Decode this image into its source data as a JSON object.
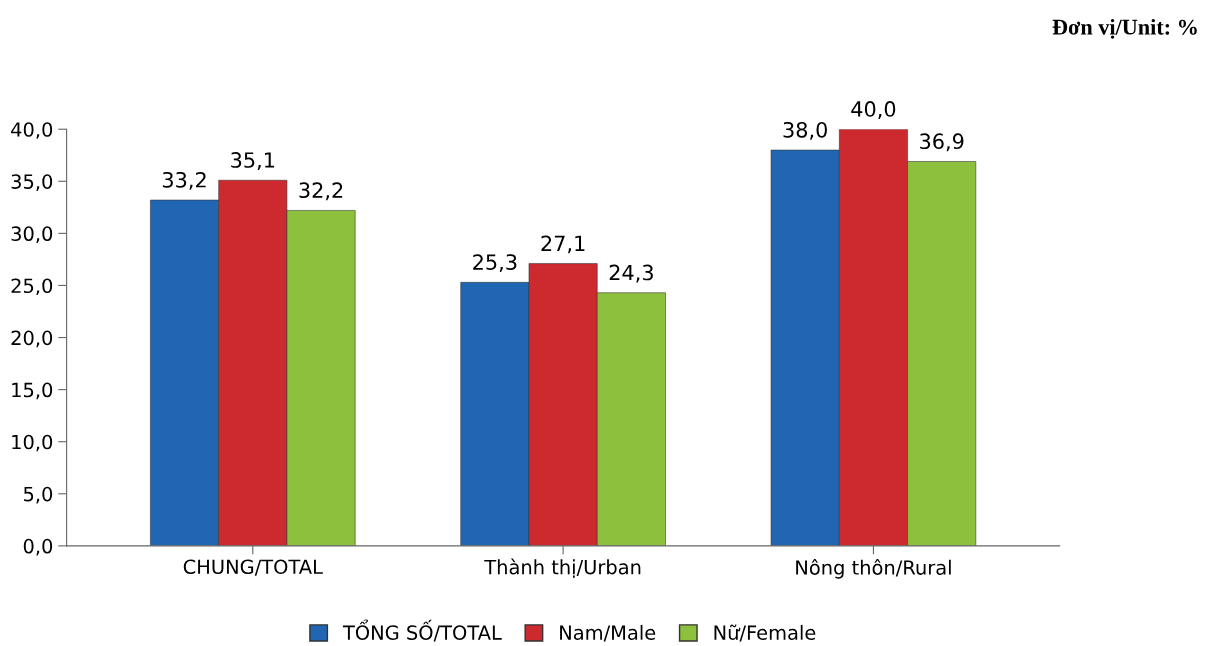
{
  "chart_data": {
    "type": "bar",
    "categories": [
      "CHUNG/TOTAL",
      "Thành thị/Urban",
      "Nông thôn/Rural"
    ],
    "series": [
      {
        "name": "TỔNG SỐ/TOTAL",
        "color": "#2166b3",
        "values": [
          33.2,
          25.3,
          38.0
        ],
        "value_labels": [
          "33,2",
          "25,3",
          "38,0"
        ]
      },
      {
        "name": "Nam/Male",
        "color": "#cc2a2e",
        "values": [
          35.1,
          27.1,
          40.0
        ],
        "value_labels": [
          "35,1",
          "27,1",
          "40,0"
        ]
      },
      {
        "name": "Nữ/Female",
        "color": "#8dc03c",
        "values": [
          32.2,
          24.3,
          36.9
        ],
        "value_labels": [
          "32,2",
          "24,3",
          "36,9"
        ]
      }
    ],
    "ylim": [
      0,
      40
    ],
    "yticks": [
      {
        "value": 0,
        "label": "0,0"
      },
      {
        "value": 5,
        "label": "5,0"
      },
      {
        "value": 10,
        "label": "10,0"
      },
      {
        "value": 15,
        "label": "15,0"
      },
      {
        "value": 20,
        "label": "20,0"
      },
      {
        "value": 25,
        "label": "25,0"
      },
      {
        "value": 30,
        "label": "30,0"
      },
      {
        "value": 35,
        "label": "35,0"
      },
      {
        "value": 40,
        "label": "40,0"
      }
    ],
    "annotations": [
      "Đơn vị/Unit: %"
    ],
    "grid": false,
    "legend": "bottom"
  }
}
